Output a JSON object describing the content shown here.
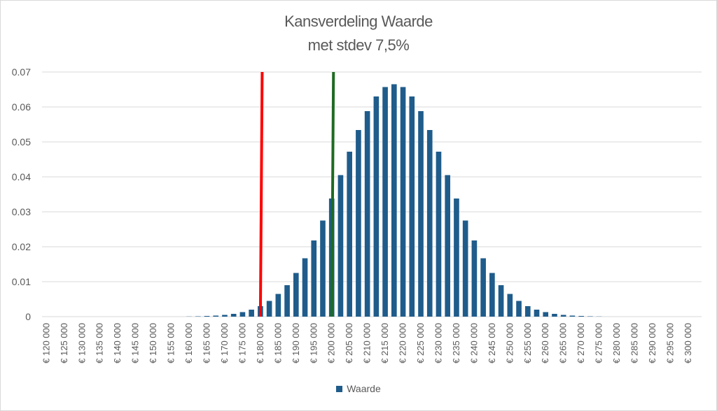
{
  "chart_data": {
    "type": "bar",
    "title": "Kansverdeling Waarde",
    "subtitle": "met stdev 7,5%",
    "y_ticks": [
      "0",
      "0.01",
      "0.02",
      "0.03",
      "0.04",
      "0.05",
      "0.06",
      "0.07"
    ],
    "ylim": [
      0,
      0.07
    ],
    "grid": true,
    "legend_position": "bottom",
    "x_labels": [
      "€ 120 000",
      "€ 125 000",
      "€ 130 000",
      "€ 135 000",
      "€ 140 000",
      "€ 145 000",
      "€ 150 000",
      "€ 155 000",
      "€ 160 000",
      "€ 165 000",
      "€ 170 000",
      "€ 175 000",
      "€ 180 000",
      "€ 185 000",
      "€ 190 000",
      "€ 195 000",
      "€ 200 000",
      "€ 205 000",
      "€ 210 000",
      "€ 215 000",
      "€ 220 000",
      "€ 225 000",
      "€ 230 000",
      "€ 235 000",
      "€ 240 000",
      "€ 245 000",
      "€ 250 000",
      "€ 255 000",
      "€ 260 000",
      "€ 265 000",
      "€ 270 000",
      "€ 275 000",
      "€ 280 000",
      "€ 285 000",
      "€ 290 000",
      "€ 295 000",
      "€ 300 000"
    ],
    "x_start": 120000,
    "x_step": 2500,
    "series": [
      {
        "name": "Waarde",
        "color": "#1f5c8b",
        "values": [
          0,
          0,
          0,
          0,
          0,
          0,
          0,
          0,
          0,
          0,
          0,
          0,
          0,
          0,
          0,
          0,
          5e-05,
          0.0001,
          0.0002,
          0.0003,
          0.0005,
          0.0008,
          0.0013,
          0.002,
          0.003,
          0.0045,
          0.0065,
          0.009,
          0.0125,
          0.0167,
          0.0218,
          0.0275,
          0.0338,
          0.0405,
          0.0472,
          0.0534,
          0.0588,
          0.063,
          0.0657,
          0.0665,
          0.0657,
          0.063,
          0.0588,
          0.0534,
          0.0472,
          0.0405,
          0.0338,
          0.0275,
          0.0218,
          0.0167,
          0.0125,
          0.009,
          0.0065,
          0.0045,
          0.003,
          0.002,
          0.0013,
          0.0008,
          0.0005,
          0.0003,
          0.0002,
          0.0001,
          5e-05,
          0,
          0,
          0,
          0,
          0,
          0,
          0,
          0,
          0,
          0,
          0
        ]
      }
    ],
    "reference_lines": [
      {
        "color": "#ff0000",
        "x_top": 180500,
        "x_bottom": 180000
      },
      {
        "color": "#1e6b22",
        "x_top": 200500,
        "x_bottom": 200000
      }
    ]
  }
}
